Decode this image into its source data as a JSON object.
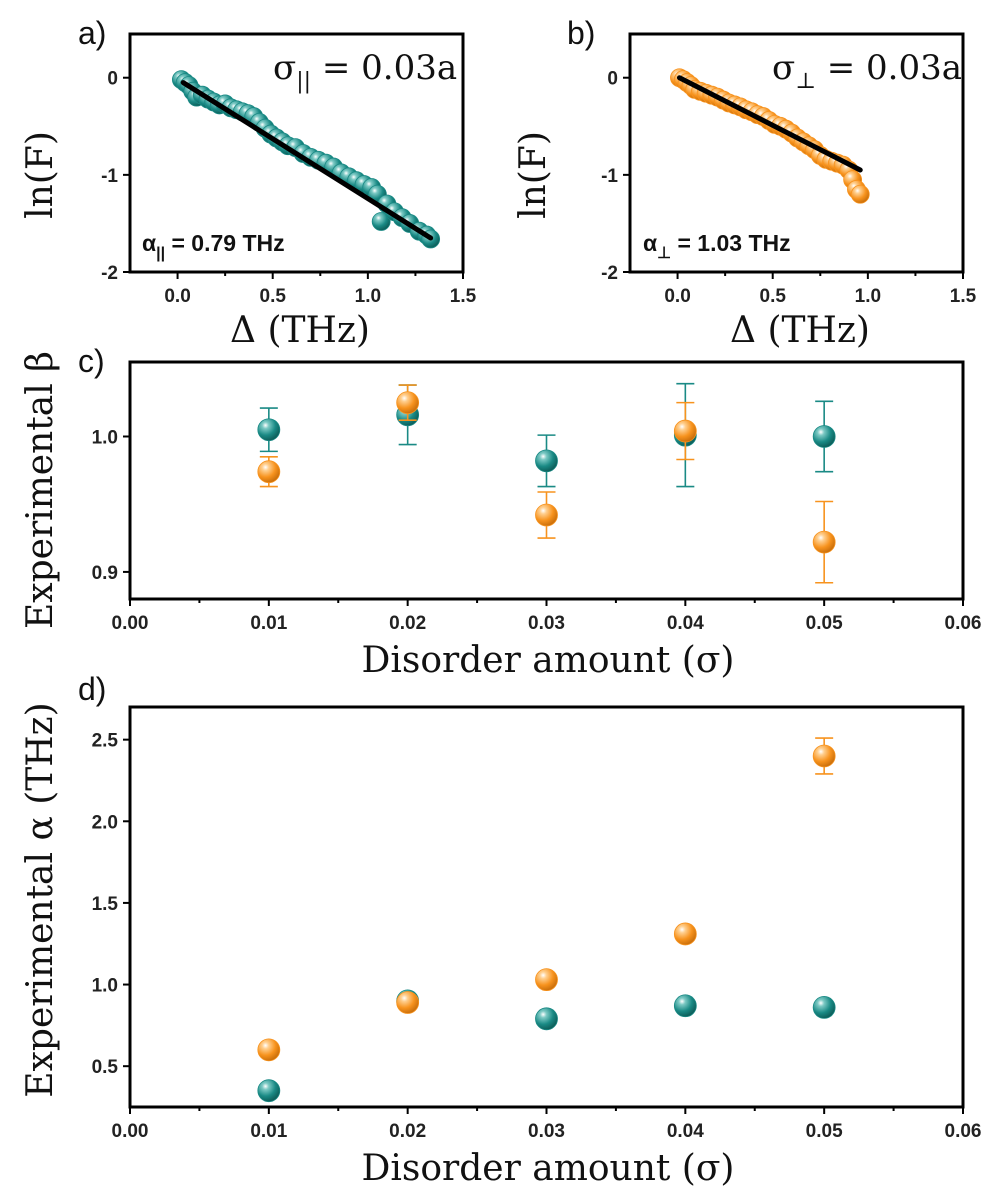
{
  "colors": {
    "teal": "#1a8a85",
    "orange": "#f7931e",
    "fit": "#000000",
    "axis": "#000000"
  },
  "chart_data": [
    {
      "id": "a",
      "type": "scatter",
      "panel_label": "a)",
      "title": "",
      "xlabel": "Δ (THz)",
      "ylabel": "ln(F)",
      "xlim": [
        -0.25,
        1.5
      ],
      "ylim": [
        -2,
        0.45
      ],
      "xticks": [
        0.0,
        0.5,
        1.0,
        1.5
      ],
      "xtick_labels": [
        "0.0",
        "0.5",
        "1.0",
        "1.5"
      ],
      "yticks": [
        0,
        -1,
        -2
      ],
      "ytick_labels": [
        "0",
        "-1",
        "-2"
      ],
      "annotation": "σ|| = 0.03a",
      "fit_label": "α|| = 0.79 THz",
      "series": [
        {
          "name": "parallel",
          "color": "teal",
          "x": [
            0.02,
            0.04,
            0.06,
            0.08,
            0.1,
            0.13,
            0.16,
            0.19,
            0.22,
            0.25,
            0.28,
            0.31,
            0.34,
            0.37,
            0.4,
            0.43,
            0.46,
            0.49,
            0.52,
            0.55,
            0.58,
            0.62,
            0.66,
            0.7,
            0.74,
            0.78,
            0.82,
            0.86,
            0.9,
            0.94,
            0.98,
            1.02,
            1.05,
            1.07,
            1.1,
            1.14,
            1.18,
            1.22,
            1.27,
            1.31,
            1.33
          ],
          "y": [
            -0.02,
            -0.05,
            -0.08,
            -0.14,
            -0.2,
            -0.18,
            -0.22,
            -0.25,
            -0.28,
            -0.27,
            -0.31,
            -0.33,
            -0.35,
            -0.37,
            -0.4,
            -0.46,
            -0.52,
            -0.58,
            -0.62,
            -0.66,
            -0.7,
            -0.72,
            -0.78,
            -0.82,
            -0.85,
            -0.88,
            -0.92,
            -0.98,
            -1.02,
            -1.06,
            -1.1,
            -1.13,
            -1.2,
            -1.48,
            -1.3,
            -1.38,
            -1.44,
            -1.5,
            -1.58,
            -1.62,
            -1.66
          ]
        }
      ],
      "fit": {
        "x": [
          0.03,
          1.33
        ],
        "y": [
          -0.05,
          -1.65
        ]
      }
    },
    {
      "id": "b",
      "type": "scatter",
      "panel_label": "b)",
      "title": "",
      "xlabel": "Δ (THz)",
      "ylabel": "ln(F)",
      "xlim": [
        -0.25,
        1.5
      ],
      "ylim": [
        -2,
        0.45
      ],
      "xticks": [
        0.0,
        0.5,
        1.0,
        1.5
      ],
      "xtick_labels": [
        "0.0",
        "0.5",
        "1.0",
        "1.5"
      ],
      "yticks": [
        0,
        -1,
        -2
      ],
      "ytick_labels": [
        "0",
        "-1",
        "-2"
      ],
      "annotation": "σ⊥ = 0.03a",
      "fit_label": "α⊥ = 1.03 THz",
      "series": [
        {
          "name": "perpendicular",
          "color": "orange",
          "x": [
            0.01,
            0.03,
            0.05,
            0.07,
            0.09,
            0.12,
            0.15,
            0.18,
            0.21,
            0.24,
            0.27,
            0.3,
            0.33,
            0.36,
            0.39,
            0.42,
            0.45,
            0.48,
            0.51,
            0.54,
            0.57,
            0.6,
            0.63,
            0.66,
            0.69,
            0.72,
            0.75,
            0.78,
            0.81,
            0.84,
            0.87,
            0.9,
            0.92,
            0.94,
            0.96
          ],
          "y": [
            0.0,
            -0.02,
            -0.05,
            -0.08,
            -0.12,
            -0.14,
            -0.16,
            -0.18,
            -0.2,
            -0.23,
            -0.26,
            -0.28,
            -0.3,
            -0.33,
            -0.35,
            -0.38,
            -0.4,
            -0.44,
            -0.48,
            -0.5,
            -0.53,
            -0.57,
            -0.62,
            -0.66,
            -0.7,
            -0.74,
            -0.8,
            -0.84,
            -0.86,
            -0.88,
            -0.9,
            -0.95,
            -1.05,
            -1.15,
            -1.2
          ]
        }
      ],
      "fit": {
        "x": [
          0.01,
          0.96
        ],
        "y": [
          0.0,
          -0.95
        ]
      }
    },
    {
      "id": "c",
      "type": "scatter",
      "panel_label": "c)",
      "title": "",
      "xlabel": "Disorder amount (σ)",
      "ylabel": "Experimental β",
      "xlim": [
        0.0,
        0.06
      ],
      "ylim": [
        0.88,
        1.055
      ],
      "xticks": [
        0.0,
        0.01,
        0.02,
        0.03,
        0.04,
        0.05,
        0.06
      ],
      "xtick_labels": [
        "0.00",
        "0.01",
        "0.02",
        "0.03",
        "0.04",
        "0.05",
        "0.06"
      ],
      "yticks": [
        0.9,
        1.0
      ],
      "ytick_labels": [
        "0.9",
        "1.0"
      ],
      "series": [
        {
          "name": "parallel",
          "color": "teal",
          "x": [
            0.01,
            0.02,
            0.03,
            0.04,
            0.05
          ],
          "y": [
            1.005,
            1.016,
            0.982,
            1.001,
            1.0
          ],
          "err": [
            0.016,
            0.022,
            0.019,
            0.038,
            0.026
          ]
        },
        {
          "name": "perpendicular",
          "color": "orange",
          "x": [
            0.01,
            0.02,
            0.03,
            0.04,
            0.05
          ],
          "y": [
            0.974,
            1.025,
            0.942,
            1.004,
            0.922
          ],
          "err": [
            0.011,
            0.013,
            0.017,
            0.021,
            0.03
          ]
        }
      ]
    },
    {
      "id": "d",
      "type": "scatter",
      "panel_label": "d)",
      "title": "",
      "xlabel": "Disorder amount (σ)",
      "ylabel": "Experimental α (THz)",
      "xlim": [
        0.0,
        0.06
      ],
      "ylim": [
        0.25,
        2.7
      ],
      "xticks": [
        0.0,
        0.01,
        0.02,
        0.03,
        0.04,
        0.05,
        0.06
      ],
      "xtick_labels": [
        "0.00",
        "0.01",
        "0.02",
        "0.03",
        "0.04",
        "0.05",
        "0.06"
      ],
      "yticks": [
        0.5,
        1.0,
        1.5,
        2.0,
        2.5
      ],
      "ytick_labels": [
        "0.5",
        "1.0",
        "1.5",
        "2.0",
        "2.5"
      ],
      "series": [
        {
          "name": "parallel",
          "color": "teal",
          "x": [
            0.01,
            0.02,
            0.03,
            0.04,
            0.05
          ],
          "y": [
            0.35,
            0.9,
            0.79,
            0.87,
            0.86
          ],
          "err": [
            0.01,
            0.02,
            0.01,
            0.01,
            0.01
          ]
        },
        {
          "name": "perpendicular",
          "color": "orange",
          "x": [
            0.01,
            0.02,
            0.03,
            0.04,
            0.05
          ],
          "y": [
            0.6,
            0.89,
            1.03,
            1.31,
            2.4
          ],
          "err": [
            0.01,
            0.02,
            0.01,
            0.01,
            0.11
          ]
        }
      ]
    }
  ]
}
